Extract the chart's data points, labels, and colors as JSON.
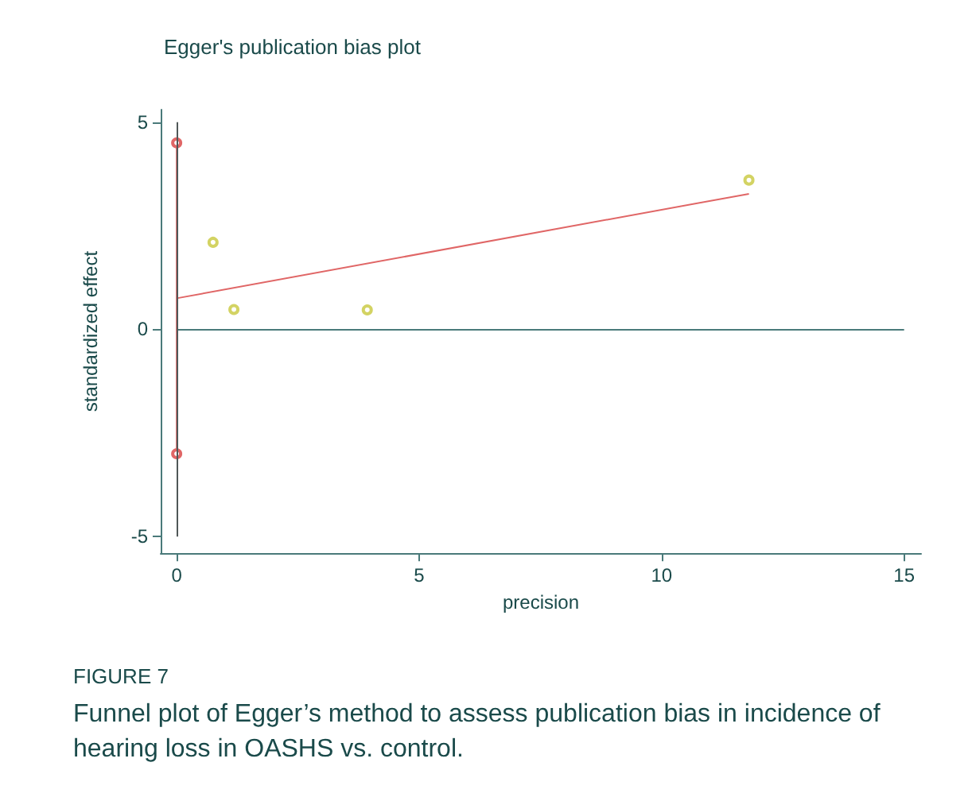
{
  "chart_data": {
    "type": "scatter",
    "title": "Egger's publication bias plot",
    "xlabel": "precision",
    "ylabel": "standardized effect",
    "xlim": [
      -0.33,
      15.35
    ],
    "ylim": [
      -5.4,
      5.3
    ],
    "xticks": [
      0,
      5,
      10,
      15
    ],
    "yticks": [
      -5,
      0,
      5
    ],
    "grid": false,
    "series": [
      {
        "color": "#c8c83c",
        "marker": "circle",
        "x": [
          0.75,
          1.18,
          3.93,
          11.8
        ],
        "values": [
          2.1,
          0.48,
          0.47,
          3.6
        ]
      },
      {
        "type": "line",
        "color": "#e06666",
        "marker": "none",
        "x": [
          0,
          11.8
        ],
        "values": [
          0.75,
          3.27
        ]
      },
      {
        "type": "line",
        "color": "#e06666",
        "marker": "circle",
        "x": [
          0,
          0
        ],
        "values": [
          -3.0,
          4.5
        ]
      }
    ],
    "ref_lines": [
      {
        "axis": "y",
        "value": 0,
        "color": "#4a7a7a"
      },
      {
        "axis": "x",
        "value": 0,
        "color": "#505858"
      }
    ],
    "annotations": [
      "FIGURE 7",
      "Funnel plot of Egger’s method to assess publication bias in incidence of hearing loss in OASHS vs. control."
    ]
  }
}
